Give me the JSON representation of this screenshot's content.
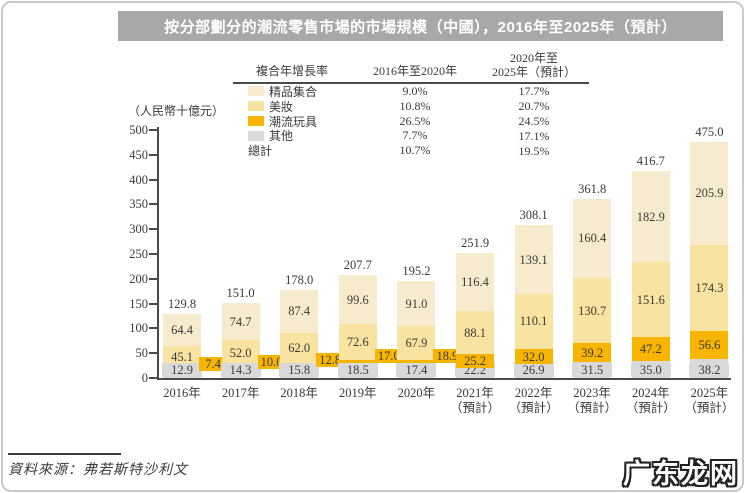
{
  "title": "按分部劃分的潮流零售市場的市場規模（中國），2016年至2025年（預計）",
  "y_axis": {
    "unit_label": "（人民幣十億元）"
  },
  "legend_table": {
    "header": {
      "col1": "複合年增長率",
      "col2": "2016年至2020年",
      "col3": "2020年至\n2025年（預計）"
    },
    "rows": [
      {
        "label": "精品集合",
        "swatch": "#f6eccd",
        "cagr_2016_2020": "9.0%",
        "cagr_2020_2025": "17.7%"
      },
      {
        "label": "美妝",
        "swatch": "#f8e3a1",
        "cagr_2016_2020": "10.8%",
        "cagr_2020_2025": "20.7%"
      },
      {
        "label": "潮流玩具",
        "swatch": "#f7b500",
        "cagr_2016_2020": "26.5%",
        "cagr_2020_2025": "24.5%"
      },
      {
        "label": "其他",
        "swatch": "#d9d9d9",
        "cagr_2016_2020": "7.7%",
        "cagr_2020_2025": "17.1%"
      },
      {
        "label": "總計",
        "swatch": null,
        "cagr_2016_2020": "10.7%",
        "cagr_2020_2025": "19.5%"
      }
    ]
  },
  "chart_data": {
    "type": "bar",
    "stacked": true,
    "title": "按分部劃分的潮流零售市場的市場規模（中國），2016年至2025年（預計）",
    "ylabel": "（人民幣十億元）",
    "ylim": [
      0,
      500
    ],
    "ytick_step": 50,
    "grid": false,
    "legend_position": "top",
    "categories": [
      "2016年",
      "2017年",
      "2018年",
      "2019年",
      "2020年",
      "2021年\n（預計）",
      "2022年\n（預計）",
      "2023年\n（預計）",
      "2024年\n（預計）",
      "2025年\n（預計）"
    ],
    "series": [
      {
        "name": "其他",
        "color": "#d9d9d9",
        "values": [
          12.9,
          14.3,
          15.8,
          18.5,
          17.4,
          22.2,
          26.9,
          31.5,
          35.0,
          38.2
        ]
      },
      {
        "name": "潮流玩具",
        "color": "#f7b500",
        "values": [
          7.4,
          10.0,
          12.8,
          17.0,
          18.9,
          25.2,
          32.0,
          39.2,
          47.2,
          56.6
        ]
      },
      {
        "name": "美妝",
        "color": "#f8e3a1",
        "values": [
          45.1,
          52.0,
          62.0,
          72.6,
          67.9,
          88.1,
          110.1,
          130.7,
          151.6,
          174.3
        ]
      },
      {
        "name": "精品集合",
        "color": "#f6eccd",
        "values": [
          64.4,
          74.7,
          87.4,
          99.6,
          91.0,
          116.4,
          139.1,
          160.4,
          182.9,
          205.9
        ]
      }
    ],
    "totals": [
      129.8,
      151.0,
      178.0,
      207.7,
      195.2,
      251.9,
      308.1,
      361.8,
      416.7,
      475.0
    ]
  },
  "source": "資料來源：弗若斯特沙利文",
  "watermark": "广东龙网"
}
